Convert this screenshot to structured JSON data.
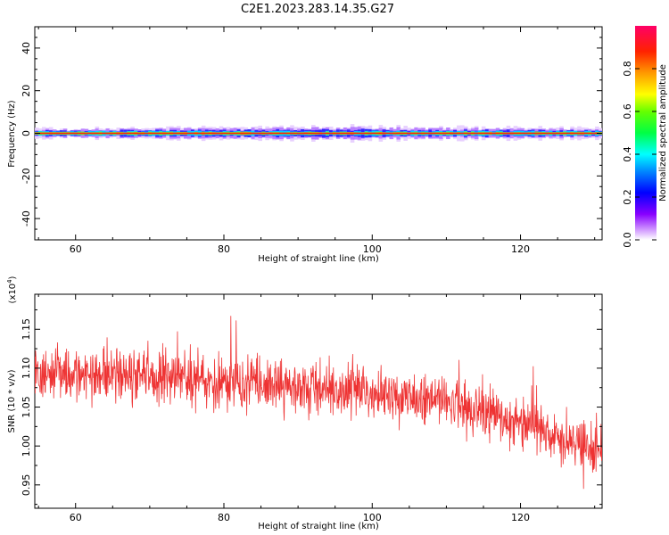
{
  "title": "C2E1.2023.283.14.35.G27",
  "chart_data": [
    {
      "type": "heatmap",
      "xlabel": "Height of straight line (km)",
      "ylabel": "Frequency (Hz)",
      "xlim": [
        54.5,
        131
      ],
      "ylim": [
        -50,
        50
      ],
      "xticks": [
        60,
        80,
        100,
        120
      ],
      "yticks": [
        40,
        20,
        0,
        -20,
        -40
      ],
      "band_center_hz": 0,
      "colorbar": {
        "label": "Normalized spectral amplitude",
        "ticks": [
          "0.0",
          "0.2",
          "0.4",
          "0.6",
          "0.8"
        ],
        "range": [
          0,
          1
        ]
      }
    },
    {
      "type": "line",
      "xlabel": "Height of straight line (km)",
      "ylabel": "SNR (10 * v/v)",
      "multiplier": "(x10",
      "multiplier_exp": "4",
      "multiplier_close": ")",
      "xlim": [
        54.5,
        131
      ],
      "ylim": [
        0.92,
        1.195
      ],
      "xticks": [
        60,
        80,
        100,
        120
      ],
      "yticks": [
        "1.15",
        "1.10",
        "1.05",
        "1.00",
        "0.95"
      ],
      "line_color": "#ee3333",
      "trend": [
        {
          "x": 55,
          "y": 1.095
        },
        {
          "x": 70,
          "y": 1.09
        },
        {
          "x": 80,
          "y": 1.085
        },
        {
          "x": 90,
          "y": 1.075
        },
        {
          "x": 100,
          "y": 1.07
        },
        {
          "x": 110,
          "y": 1.055
        },
        {
          "x": 120,
          "y": 1.03
        },
        {
          "x": 131,
          "y": 0.99
        }
      ]
    }
  ]
}
